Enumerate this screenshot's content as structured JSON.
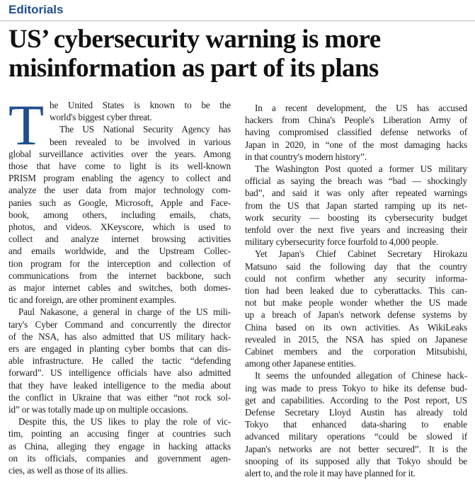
{
  "section": "Editorials",
  "headline": [
    "US’ cybersecurity warning is more",
    "misinformation as part of its plans"
  ],
  "drop_cap": "T",
  "columns": [
    {
      "paragraphs": [
        [
          "he United States is known to be the",
          "world's biggest cyber threat."
        ],
        [
          "The US National Security Agency has",
          "been revealed to be involved in various",
          "global surveillance activities over the years. Among",
          "those that have come to light is its well-known",
          "PRISM program enabling the agency to collect and",
          "analyze the user data from major technology com-",
          "panies such as Google, Microsoft, Apple and Face-",
          "book, among others, including emails, chats,",
          "photos, and videos. XKeyscore, which is used to",
          "collect and analyze internet browsing activities",
          "and emails worldwide, and the Upstream Collec-",
          "tion program for the interception and collection of",
          "communications from the internet backbone, such",
          "as major internet cables and switches, both domes-",
          "tic and foreign, are other prominent examples."
        ],
        [
          "Paul Nakasone, a general in charge of the US mili-",
          "tary's Cyber Command and concurrently the director",
          "of the NSA, has also admitted that US military hack-",
          "ers are engaged in planting cyber bombs that can dis-",
          "able infrastructure. He called the tactic “defending",
          "forward”. US intelligence officials have also admitted",
          "that they have leaked intelligence to the media about",
          "the conflict in Ukraine that was either “not rock sol-",
          "id” or was totally made up on multiple occasions."
        ],
        [
          "Despite this, the US likes to play the role of vic-",
          "tim, pointing an accusing finger at countries such",
          "as China, alleging they engage in hacking attacks",
          "on its officials, companies and government agen-",
          "cies, as well as those of its allies."
        ]
      ]
    },
    {
      "paragraphs": [
        [
          "In a recent development, the US has accused",
          "hackers from China's People's Liberation Army of",
          "having compromised classified defense networks of",
          "Japan in 2020, in “one of the most damaging hacks",
          "in that country's modern history”."
        ],
        [
          "The Washington Post quoted a former US military",
          "official as saying the breach was “bad — shockingly",
          "bad”, and said it was only after repeated warnings",
          "from the US that Japan started ramping up its net-",
          "work security — boosting its cybersecurity budget",
          "tenfold over the next five years and increasing their",
          "military cybersecurity force fourfold to 4,000 people."
        ],
        [
          "Yet Japan's Chief Cabinet Secretary Hirokazu",
          "Matsuno said the following day that the country",
          "could not confirm whether any security informa-",
          "tion had been leaked due to cyberattacks. This can-",
          "not but make people wonder whether the US made",
          "up a breach of Japan's network defense systems by",
          "China based on its own activities. As WikiLeaks",
          "revealed in 2015, the NSA has spied on Japanese",
          "Cabinet members and the corporation Mitsubishi,",
          "among other Japanese entities."
        ],
        [
          "It seems the unfounded allegation of Chinese hack-",
          "ing was made to press Tokyo to hike its defense bud-",
          "get and capabilities. According to the Post report, US",
          "Defense Secretary Lloyd Austin has already told",
          "Tokyo that enhanced data-sharing to enable",
          "advanced military operations “could be slowed if",
          "Japan's networks are not better secured”. It is the",
          "snooping of its supposed ally that Tokyo should be",
          "alert to, and the role it may have planned for it."
        ]
      ]
    }
  ]
}
